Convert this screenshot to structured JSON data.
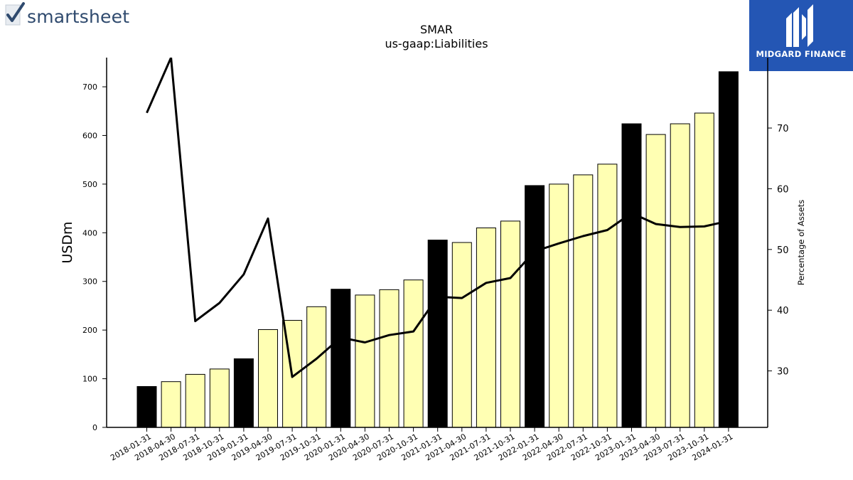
{
  "brand_left": {
    "text": "smartsheet",
    "icon": "checkmark-logo-icon"
  },
  "brand_right": {
    "text": "MIDGARD FINANCE",
    "icon": "midgard-logo-icon",
    "bg_color": "#2456b4"
  },
  "chart_data": {
    "type": "bar",
    "title": "SMAR",
    "subtitle": "us-gaap:Liabilities",
    "ylabel": "USDm",
    "y2label": "Percentage of Assets",
    "ylim": [
      0,
      760
    ],
    "y2lim": [
      20.7,
      81.6
    ],
    "yticks": [
      0,
      100,
      200,
      300,
      400,
      500,
      600,
      700
    ],
    "y2ticks": [
      30,
      40,
      50,
      60,
      70
    ],
    "categories": [
      "2018-01-31",
      "2018-04-30",
      "2018-07-31",
      "2018-10-31",
      "2019-01-31",
      "2019-04-30",
      "2019-07-31",
      "2019-10-31",
      "2020-01-31",
      "2020-04-30",
      "2020-07-31",
      "2020-10-31",
      "2021-01-31",
      "2021-04-30",
      "2021-07-31",
      "2021-10-31",
      "2022-01-31",
      "2022-04-30",
      "2022-07-31",
      "2022-10-31",
      "2023-01-31",
      "2023-04-30",
      "2023-07-31",
      "2023-10-31",
      "2024-01-31"
    ],
    "series": [
      {
        "type": "bar",
        "values": [
          84,
          94,
          109,
          120,
          141,
          201,
          220,
          248,
          284,
          272,
          283,
          303,
          385,
          380,
          410,
          424,
          497,
          500,
          519,
          541,
          624,
          602,
          624,
          646,
          731
        ],
        "fiscal_year_end": [
          true,
          false,
          false,
          false,
          true,
          false,
          false,
          false,
          true,
          false,
          false,
          false,
          true,
          false,
          false,
          false,
          true,
          false,
          false,
          false,
          true,
          false,
          false,
          false,
          true
        ]
      },
      {
        "type": "line",
        "axis": "right",
        "values": [
          72.5,
          81.6,
          38.2,
          41.2,
          45.9,
          55.1,
          29.0,
          32.0,
          35.5,
          34.7,
          35.9,
          36.5,
          42.2,
          42.0,
          44.5,
          45.3,
          49.7,
          51.0,
          52.2,
          53.2,
          56.0,
          54.2,
          53.7,
          53.8,
          54.7
        ]
      }
    ],
    "colors": {
      "bar_fiscal": "#000000",
      "bar_quarter": "#ffffb3",
      "bar_edge": "#000000",
      "line": "#000000"
    },
    "grid": false,
    "legend": "none"
  }
}
